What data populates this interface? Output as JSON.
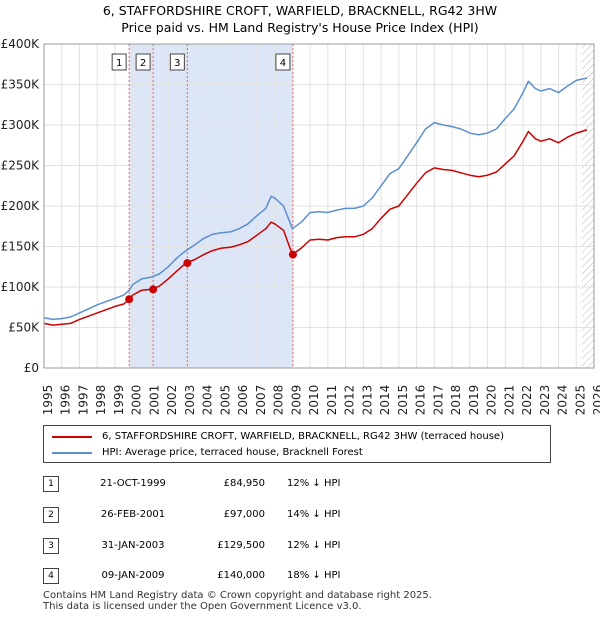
{
  "title": {
    "line1": "6, STAFFORDSHIRE CROFT, WARFIELD, BRACKNELL, RG42 3HW",
    "line2": "Price paid vs. HM Land Registry's House Price Index (HPI)"
  },
  "colors": {
    "property": "#cc0000",
    "hpi": "#5b8fd0",
    "shade": "#dde6f7",
    "vline": "#e06666",
    "hatch": "#bbbbbb"
  },
  "legend": {
    "property_label": "6, STAFFORDSHIRE CROFT, WARFIELD, BRACKNELL, RG42 3HW (terraced house)",
    "hpi_label": "HPI: Average price, terraced house, Bracknell Forest"
  },
  "transactions": [
    {
      "num": "1",
      "date": "21-OCT-1999",
      "price": "£84,950",
      "delta": "12% ↓ HPI"
    },
    {
      "num": "2",
      "date": "26-FEB-2001",
      "price": "£97,000",
      "delta": "14% ↓ HPI"
    },
    {
      "num": "3",
      "date": "31-JAN-2003",
      "price": "£129,500",
      "delta": "12% ↓ HPI"
    },
    {
      "num": "4",
      "date": "09-JAN-2009",
      "price": "£140,000",
      "delta": "18% ↓ HPI"
    }
  ],
  "footer": {
    "line1": "Contains HM Land Registry data © Crown copyright and database right 2025.",
    "line2": "This data is licensed under the Open Government Licence v3.0."
  },
  "chart_data": {
    "type": "line",
    "title": "6, STAFFORDSHIRE CROFT, WARFIELD, BRACKNELL, RG42 3HW — Price paid vs. HM Land Registry's House Price Index (HPI)",
    "xlim": [
      1995,
      2026
    ],
    "ylim": [
      0,
      400000
    ],
    "x_ticks": [
      1995,
      1996,
      1997,
      1998,
      1999,
      2000,
      2001,
      2002,
      2003,
      2004,
      2005,
      2006,
      2007,
      2008,
      2009,
      2010,
      2011,
      2012,
      2013,
      2014,
      2015,
      2016,
      2017,
      2018,
      2019,
      2020,
      2021,
      2022,
      2023,
      2024,
      2025,
      2026
    ],
    "y_ticks": [
      {
        "value": 0,
        "label": "£0"
      },
      {
        "value": 50000,
        "label": "£50K"
      },
      {
        "value": 100000,
        "label": "£100K"
      },
      {
        "value": 150000,
        "label": "£150K"
      },
      {
        "value": 200000,
        "label": "£200K"
      },
      {
        "value": 250000,
        "label": "£250K"
      },
      {
        "value": 300000,
        "label": "£300K"
      },
      {
        "value": 350000,
        "label": "£350K"
      },
      {
        "value": 400000,
        "label": "£400K"
      }
    ],
    "shaded_region": [
      1999.8,
      2009.03
    ],
    "future_hatch_from": 2025.3,
    "sale_markers": [
      {
        "label": "1",
        "x": 1999.8,
        "y": 84950
      },
      {
        "label": "2",
        "x": 2001.15,
        "y": 97000
      },
      {
        "label": "3",
        "x": 2003.08,
        "y": 129500
      },
      {
        "label": "4",
        "x": 2009.03,
        "y": 140000
      }
    ],
    "series": [
      {
        "name": "HPI: Average price, terraced house, Bracknell Forest",
        "color": "#5b8fd0",
        "points": [
          [
            1995,
            62000
          ],
          [
            1995.5,
            60000
          ],
          [
            1996,
            61000
          ],
          [
            1996.5,
            63000
          ],
          [
            1997,
            68000
          ],
          [
            1997.5,
            73000
          ],
          [
            1998,
            78000
          ],
          [
            1998.5,
            82000
          ],
          [
            1999,
            86000
          ],
          [
            1999.5,
            90000
          ],
          [
            1999.8,
            96000
          ],
          [
            2000,
            103000
          ],
          [
            2000.5,
            110000
          ],
          [
            2001,
            112000
          ],
          [
            2001.5,
            116000
          ],
          [
            2002,
            125000
          ],
          [
            2002.5,
            136000
          ],
          [
            2003,
            145000
          ],
          [
            2003.5,
            152000
          ],
          [
            2004,
            160000
          ],
          [
            2004.5,
            165000
          ],
          [
            2005,
            167000
          ],
          [
            2005.5,
            168000
          ],
          [
            2006,
            172000
          ],
          [
            2006.5,
            178000
          ],
          [
            2007,
            188000
          ],
          [
            2007.5,
            197000
          ],
          [
            2007.8,
            212000
          ],
          [
            2008,
            210000
          ],
          [
            2008.5,
            200000
          ],
          [
            2009,
            172000
          ],
          [
            2009.5,
            180000
          ],
          [
            2010,
            192000
          ],
          [
            2010.5,
            193000
          ],
          [
            2011,
            192000
          ],
          [
            2011.5,
            195000
          ],
          [
            2012,
            197000
          ],
          [
            2012.5,
            197000
          ],
          [
            2013,
            200000
          ],
          [
            2013.5,
            210000
          ],
          [
            2014,
            225000
          ],
          [
            2014.5,
            240000
          ],
          [
            2015,
            246000
          ],
          [
            2015.5,
            262000
          ],
          [
            2016,
            278000
          ],
          [
            2016.5,
            295000
          ],
          [
            2017,
            303000
          ],
          [
            2017.5,
            300000
          ],
          [
            2018,
            298000
          ],
          [
            2018.5,
            295000
          ],
          [
            2019,
            290000
          ],
          [
            2019.5,
            288000
          ],
          [
            2020,
            290000
          ],
          [
            2020.5,
            295000
          ],
          [
            2021,
            308000
          ],
          [
            2021.5,
            320000
          ],
          [
            2022,
            340000
          ],
          [
            2022.3,
            354000
          ],
          [
            2022.7,
            345000
          ],
          [
            2023,
            342000
          ],
          [
            2023.5,
            345000
          ],
          [
            2024,
            340000
          ],
          [
            2024.5,
            348000
          ],
          [
            2025,
            355000
          ],
          [
            2025.6,
            358000
          ]
        ]
      },
      {
        "name": "6, STAFFORDSHIRE CROFT, WARFIELD, BRACKNELL, RG42 3HW (terraced house)",
        "color": "#cc0000",
        "points": [
          [
            1995,
            55000
          ],
          [
            1995.5,
            53000
          ],
          [
            1996,
            54000
          ],
          [
            1996.5,
            55000
          ],
          [
            1997,
            60000
          ],
          [
            1997.5,
            64000
          ],
          [
            1998,
            68000
          ],
          [
            1998.5,
            72000
          ],
          [
            1999,
            76000
          ],
          [
            1999.5,
            79000
          ],
          [
            1999.8,
            84950
          ],
          [
            2000,
            90000
          ],
          [
            2000.5,
            96000
          ],
          [
            2001,
            97000
          ],
          [
            2001.5,
            101000
          ],
          [
            2002,
            110000
          ],
          [
            2002.5,
            120000
          ],
          [
            2003,
            129500
          ],
          [
            2003.5,
            134000
          ],
          [
            2004,
            140000
          ],
          [
            2004.5,
            145000
          ],
          [
            2005,
            148000
          ],
          [
            2005.5,
            149000
          ],
          [
            2006,
            152000
          ],
          [
            2006.5,
            156000
          ],
          [
            2007,
            164000
          ],
          [
            2007.5,
            172000
          ],
          [
            2007.8,
            180000
          ],
          [
            2008,
            178000
          ],
          [
            2008.5,
            170000
          ],
          [
            2009,
            140000
          ],
          [
            2009.5,
            148000
          ],
          [
            2010,
            158000
          ],
          [
            2010.5,
            159000
          ],
          [
            2011,
            158000
          ],
          [
            2011.5,
            161000
          ],
          [
            2012,
            162000
          ],
          [
            2012.5,
            162000
          ],
          [
            2013,
            165000
          ],
          [
            2013.5,
            172000
          ],
          [
            2014,
            185000
          ],
          [
            2014.5,
            196000
          ],
          [
            2015,
            200000
          ],
          [
            2015.5,
            214000
          ],
          [
            2016,
            228000
          ],
          [
            2016.5,
            241000
          ],
          [
            2017,
            247000
          ],
          [
            2017.5,
            245000
          ],
          [
            2018,
            244000
          ],
          [
            2018.5,
            241000
          ],
          [
            2019,
            238000
          ],
          [
            2019.5,
            236000
          ],
          [
            2020,
            238000
          ],
          [
            2020.5,
            242000
          ],
          [
            2021,
            252000
          ],
          [
            2021.5,
            262000
          ],
          [
            2022,
            280000
          ],
          [
            2022.3,
            292000
          ],
          [
            2022.7,
            283000
          ],
          [
            2023,
            280000
          ],
          [
            2023.5,
            283000
          ],
          [
            2024,
            278000
          ],
          [
            2024.5,
            285000
          ],
          [
            2025,
            290000
          ],
          [
            2025.6,
            294000
          ]
        ]
      }
    ]
  }
}
